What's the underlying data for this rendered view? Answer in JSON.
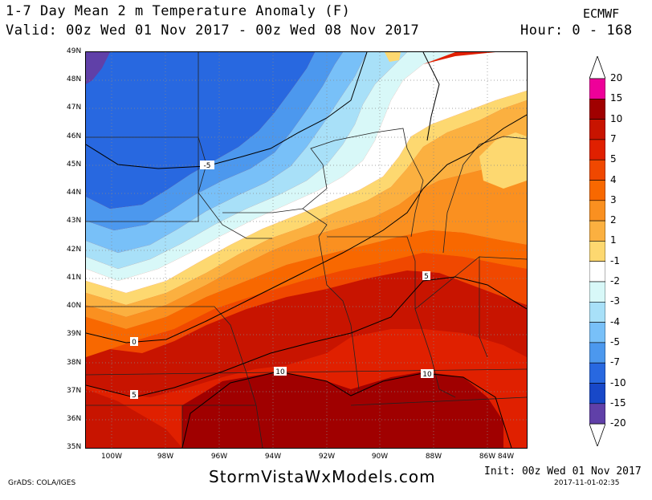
{
  "title": "1-7 Day Mean 2 m Temperature Anomaly (F)",
  "valid": "Valid: 00z Wed 01 Nov 2017 - 00z Wed 08 Nov 2017",
  "model": "ECMWF",
  "hour": "Hour: 0 - 168",
  "lat_labels": [
    "49N",
    "48N",
    "47N",
    "46N",
    "45N",
    "44N",
    "43N",
    "42N",
    "41N",
    "40N",
    "39N",
    "38N",
    "37N",
    "36N",
    "35N"
  ],
  "lon_labels": [
    "100W",
    "98W",
    "96W",
    "94W",
    "92W",
    "90W",
    "88W",
    "86W",
    "84W"
  ],
  "contour_labels": [
    "-5",
    "0",
    "5",
    "5",
    "10",
    "10"
  ],
  "colorbar": {
    "labels": [
      "20",
      "15",
      "10",
      "7",
      "5",
      "4",
      "3",
      "2",
      "1",
      "-1",
      "-2",
      "-3",
      "-4",
      "-5",
      "-7",
      "-10",
      "-15",
      "-20"
    ],
    "colors": [
      "#ee0099",
      "#a00000",
      "#c81400",
      "#e02000",
      "#f04800",
      "#f86800",
      "#fa9020",
      "#fbb040",
      "#fdd870",
      "#ffffff",
      "#d8f8f8",
      "#a8e0f8",
      "#78c0f8",
      "#4c98ee",
      "#2868e0",
      "#1848c8",
      "#6040a8",
      "#8000c0"
    ],
    "top_arrow_color": "#ffffff",
    "bottom_arrow_color": "#ffffff"
  },
  "website": "StormVistaWxModels.com",
  "grads": "GrADS: COLA/IGES",
  "init": "Init: 00z Wed 01 Nov 2017",
  "timestamp": "2017-11-01-02:35"
}
